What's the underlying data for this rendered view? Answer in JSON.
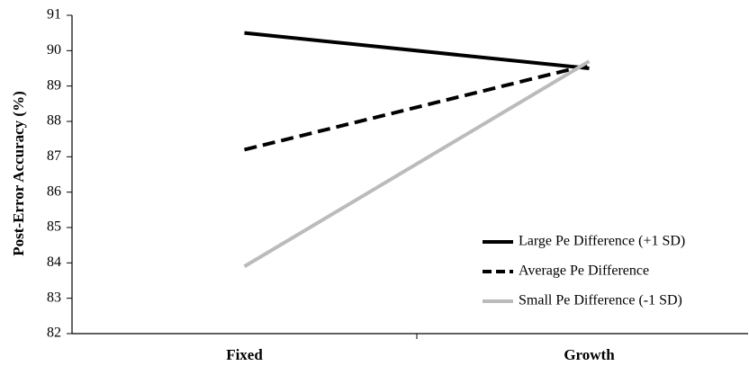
{
  "chart_data": {
    "type": "line",
    "y_label": "Post-Error Accuracy (%)",
    "categories": [
      "Fixed",
      "Growth"
    ],
    "series": [
      {
        "name": "Large Pe Difference (+1 SD)",
        "color": "#000000",
        "dashed": false,
        "values": [
          90.5,
          89.5
        ]
      },
      {
        "name": "Average Pe Difference",
        "color": "#000000",
        "dashed": true,
        "values": [
          87.2,
          89.6
        ]
      },
      {
        "name": "Small Pe Difference (-1 SD)",
        "color": "#bbbbbb",
        "dashed": false,
        "values": [
          83.9,
          89.7
        ]
      }
    ],
    "ylim": [
      82,
      91
    ],
    "yticks": [
      82,
      83,
      84,
      85,
      86,
      87,
      88,
      89,
      90,
      91
    ],
    "grid": false,
    "legend": "lower right"
  }
}
